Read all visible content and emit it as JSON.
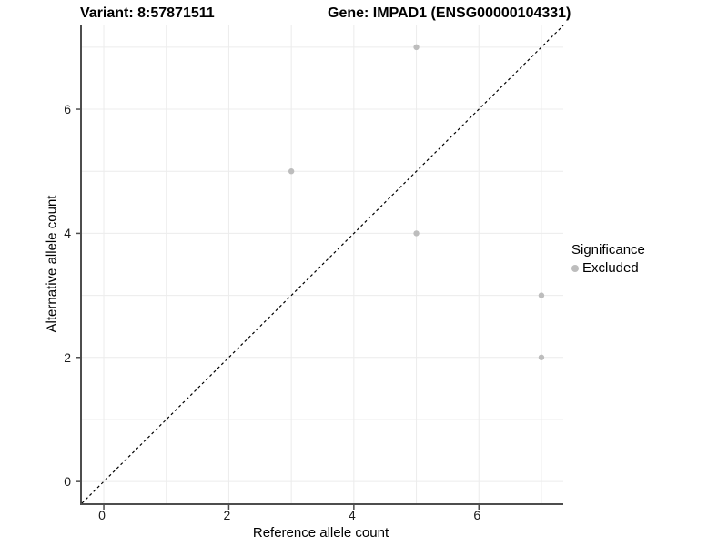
{
  "chart_data": {
    "type": "scatter",
    "title_left": "Variant: 8:57871511",
    "title_right": "Gene: IMPAD1 (ENSG00000104331)",
    "xlabel": "Reference allele count",
    "ylabel": "Alternative allele count",
    "xlim": [
      -0.35,
      7.35
    ],
    "ylim": [
      -0.35,
      7.35
    ],
    "xticks": [
      0,
      2,
      4,
      6
    ],
    "yticks": [
      0,
      2,
      4,
      6
    ],
    "gridlines": [
      0,
      1,
      2,
      3,
      4,
      5,
      6,
      7
    ],
    "grid": true,
    "identity_line": {
      "equation": "y = x",
      "style": "dashed",
      "color": "#000000"
    },
    "series": [
      {
        "name": "Excluded",
        "marker": "circle",
        "color": "#bdbdbd",
        "points": [
          [
            5,
            7
          ],
          [
            3,
            5
          ],
          [
            5,
            4
          ],
          [
            7,
            3
          ],
          [
            7,
            2
          ]
        ]
      }
    ],
    "legend": {
      "title": "Significance",
      "position": "right",
      "items": [
        {
          "label": "Excluded",
          "color": "#bdbdbd"
        }
      ]
    }
  },
  "colors": {
    "background": "#ffffff",
    "grid": "#ececec",
    "axis_line": "#4d4d4d",
    "point": "#bdbdbd",
    "identity_line": "#000000",
    "text": "#000000"
  }
}
